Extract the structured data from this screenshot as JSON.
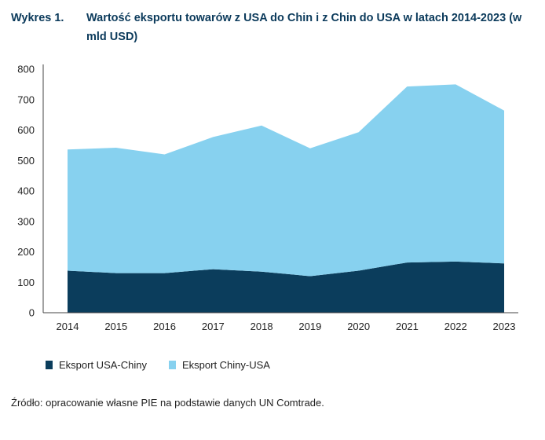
{
  "header": {
    "label": "Wykres 1.",
    "title": "Wartość eksportu towarów z USA do Chin i z Chin do USA w latach 2014-2023 (w mld USD)"
  },
  "source": "Źródło: opracowanie własne PIE na podstawie danych UN Comtrade.",
  "chart_data": {
    "type": "area",
    "stacked": true,
    "x": [
      "2014",
      "2015",
      "2016",
      "2017",
      "2018",
      "2019",
      "2020",
      "2021",
      "2022",
      "2023"
    ],
    "series": [
      {
        "name": "Eksport USA-Chiny",
        "color": "#0b3d5c",
        "values": [
          138,
          130,
          130,
          143,
          135,
          120,
          138,
          165,
          168,
          162
        ]
      },
      {
        "name": "Eksport Chiny-USA",
        "color": "#87d1ef",
        "values": [
          398,
          412,
          390,
          434,
          480,
          420,
          455,
          578,
          582,
          502
        ]
      }
    ],
    "yticks": [
      "0",
      "100",
      "200",
      "300",
      "400",
      "500",
      "600",
      "700",
      "800"
    ],
    "ylim": [
      0,
      800
    ],
    "grid": false,
    "legend_position": "bottom-left"
  }
}
